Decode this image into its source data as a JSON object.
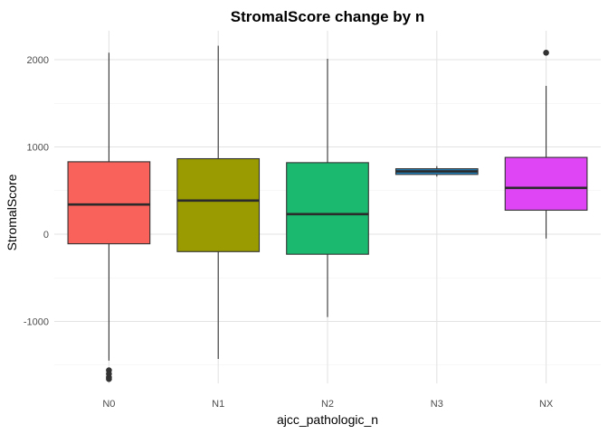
{
  "chart_data": {
    "type": "boxplot",
    "title": "StromalScore change by n",
    "xlabel": "ajcc_pathologic_n",
    "ylabel": "StromalScore",
    "ylim": [
      -1700,
      2350
    ],
    "yticks": [
      -1000,
      0,
      1000,
      2000
    ],
    "y_minor_ticks": [
      -1500,
      -500,
      500,
      1500
    ],
    "grid": true,
    "legend": "none",
    "categories": [
      "N0",
      "N1",
      "N2",
      "N3",
      "NX"
    ],
    "boxes": [
      {
        "category": "N0",
        "color": "#F8625A",
        "q1": -110,
        "median": 340,
        "q3": 830,
        "whisker_low": -1450,
        "whisker_high": 2080,
        "outliers": [
          -1560,
          -1600,
          -1640,
          -1660
        ]
      },
      {
        "category": "N1",
        "color": "#999B00",
        "q1": -200,
        "median": 385,
        "q3": 865,
        "whisker_low": -1430,
        "whisker_high": 2160,
        "outliers": []
      },
      {
        "category": "N2",
        "color": "#1BB96F",
        "q1": -230,
        "median": 230,
        "q3": 820,
        "whisker_low": -950,
        "whisker_high": 2010,
        "outliers": []
      },
      {
        "category": "N3",
        "color": "#1F83C0",
        "q1": 685,
        "median": 720,
        "q3": 750,
        "whisker_low": 660,
        "whisker_high": 780,
        "outliers": []
      },
      {
        "category": "NX",
        "color": "#DF45F5",
        "q1": 275,
        "median": 530,
        "q3": 880,
        "whisker_low": -50,
        "whisker_high": 1700,
        "outliers": [
          2080
        ]
      }
    ]
  }
}
